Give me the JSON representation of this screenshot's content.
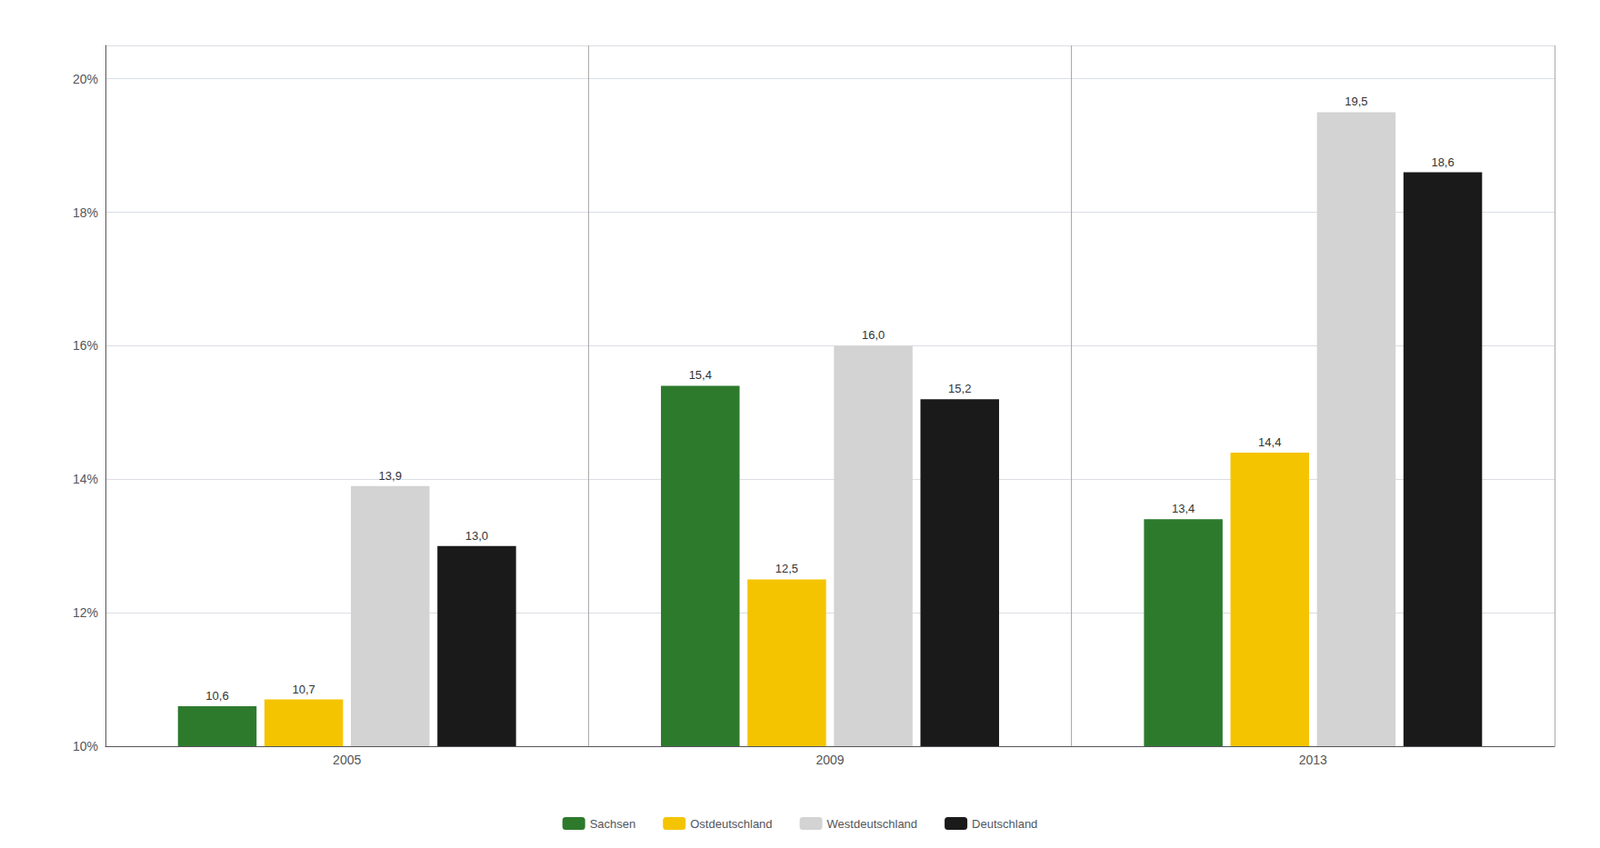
{
  "chart_data": {
    "type": "bar",
    "categories": [
      "2005",
      "2009",
      "2013"
    ],
    "series": [
      {
        "name": "Sachsen",
        "color": "#2d7a2d",
        "values": [
          10.6,
          15.4,
          13.4
        ],
        "value_labels": [
          "10,6",
          "15,4",
          "13,4"
        ]
      },
      {
        "name": "Ostdeutschland",
        "color": "#f5c400",
        "values": [
          10.7,
          12.5,
          14.4
        ],
        "value_labels": [
          "10,7",
          "12,5",
          "14,4"
        ]
      },
      {
        "name": "Westdeutschland",
        "color": "#d3d3d3",
        "values": [
          13.9,
          16.0,
          19.5
        ],
        "value_labels": [
          "13,9",
          "16,0",
          "19,5"
        ]
      },
      {
        "name": "Deutschland",
        "color": "#1a1a1a",
        "values": [
          13.0,
          15.2,
          18.6
        ],
        "value_labels": [
          "13,0",
          "15,2",
          "18,6"
        ]
      }
    ],
    "ylim": [
      10,
      20.5
    ],
    "yticks": [
      {
        "value": 10,
        "label": "10%"
      },
      {
        "value": 12,
        "label": "12%"
      },
      {
        "value": 14,
        "label": "14%"
      },
      {
        "value": 16,
        "label": "16%"
      },
      {
        "value": 18,
        "label": "18%"
      },
      {
        "value": 20,
        "label": "20%"
      }
    ],
    "grid": true,
    "legend": "bottom",
    "data_labels": true
  }
}
